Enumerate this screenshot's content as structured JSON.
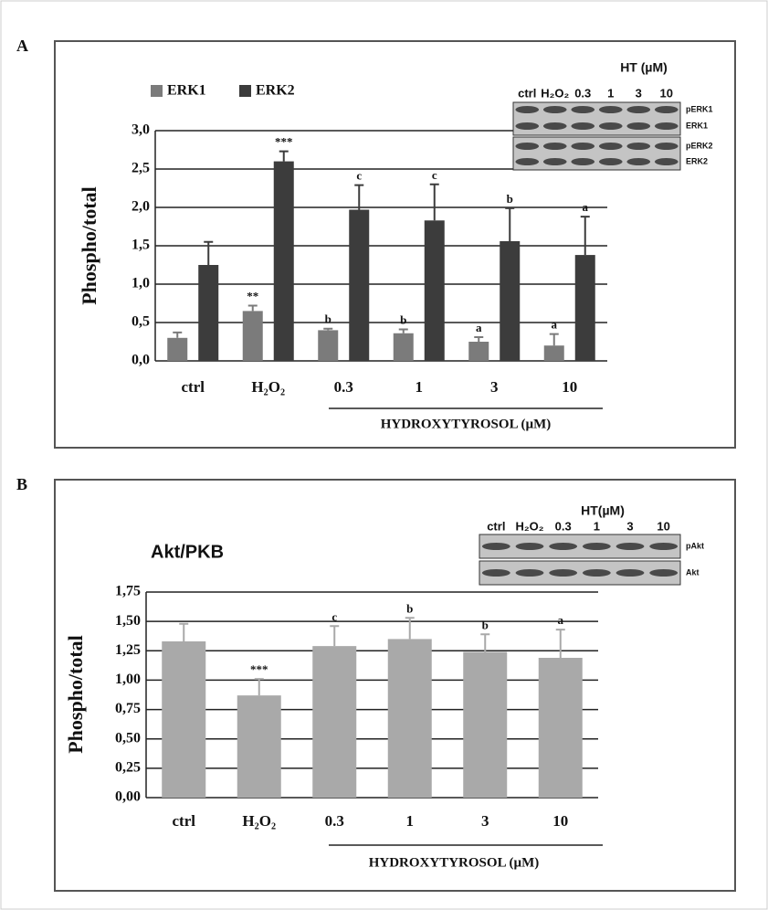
{
  "chart_data": [
    {
      "type": "bar",
      "panel": "A",
      "ylabel": "Phospho/total",
      "xlabel": "HYDROXYTYROSOL (µM)",
      "categories": [
        "ctrl",
        "H₂O₂",
        "0.3",
        "1",
        "3",
        "10"
      ],
      "series": [
        {
          "name": "ERK1",
          "color": "#7b7b7b",
          "values": [
            0.3,
            0.65,
            0.4,
            0.36,
            0.25,
            0.2
          ],
          "errors": [
            0.07,
            0.07,
            0.02,
            0.05,
            0.06,
            0.15
          ],
          "annotations": [
            null,
            "**",
            "b",
            "b",
            "a",
            "a"
          ]
        },
        {
          "name": "ERK2",
          "color": "#3c3c3c",
          "values": [
            1.25,
            2.6,
            1.97,
            1.83,
            1.56,
            1.38
          ],
          "errors": [
            0.3,
            0.13,
            0.32,
            0.47,
            0.43,
            0.5
          ],
          "annotations": [
            null,
            "***",
            "c",
            "c",
            "b",
            "a"
          ]
        }
      ],
      "ylim": [
        0,
        3
      ],
      "yticks": [
        {
          "value": 0,
          "label": "0,0"
        },
        {
          "value": 0.5,
          "label": "0,5"
        },
        {
          "value": 1,
          "label": "1,0"
        },
        {
          "value": 1.5,
          "label": "1,5"
        },
        {
          "value": 2,
          "label": "2,0"
        },
        {
          "value": 2.5,
          "label": "2,5"
        },
        {
          "value": 3,
          "label": "3,0"
        }
      ],
      "grid": true,
      "blot": {
        "title": "HT (µM)",
        "lanes": [
          "ctrl",
          "H₂O₂",
          "0.3",
          "1",
          "3",
          "10"
        ],
        "rows": [
          "pERK1",
          "ERK1",
          "pERK2",
          "ERK2"
        ]
      }
    },
    {
      "type": "bar",
      "panel": "B",
      "title": "Akt/PKB",
      "ylabel": "Phospho/total",
      "xlabel": "HYDROXYTYROSOL (µM)",
      "categories": [
        "ctrl",
        "H₂O₂",
        "0.3",
        "1",
        "3",
        "10"
      ],
      "color": "#a9a9a9",
      "values": [
        1.33,
        0.87,
        1.29,
        1.35,
        1.24,
        1.19
      ],
      "errors": [
        0.15,
        0.14,
        0.17,
        0.18,
        0.15,
        0.24
      ],
      "annotations": [
        null,
        "***",
        "c",
        "b",
        "b",
        "a"
      ],
      "ylim": [
        0,
        1.75
      ],
      "yticks": [
        {
          "value": 0,
          "label": "0,00"
        },
        {
          "value": 0.25,
          "label": "0,25"
        },
        {
          "value": 0.5,
          "label": "0,50"
        },
        {
          "value": 0.75,
          "label": "0,75"
        },
        {
          "value": 1,
          "label": "1,00"
        },
        {
          "value": 1.25,
          "label": "1,25"
        },
        {
          "value": 1.5,
          "label": "1,50"
        },
        {
          "value": 1.75,
          "label": "1,75"
        }
      ],
      "grid": true,
      "blot": {
        "title": "HT(µM)",
        "lanes": [
          "ctrl",
          "H₂O₂",
          "0.3",
          "1",
          "3",
          "10"
        ],
        "rows": [
          "pAkt",
          "Akt"
        ]
      }
    }
  ]
}
